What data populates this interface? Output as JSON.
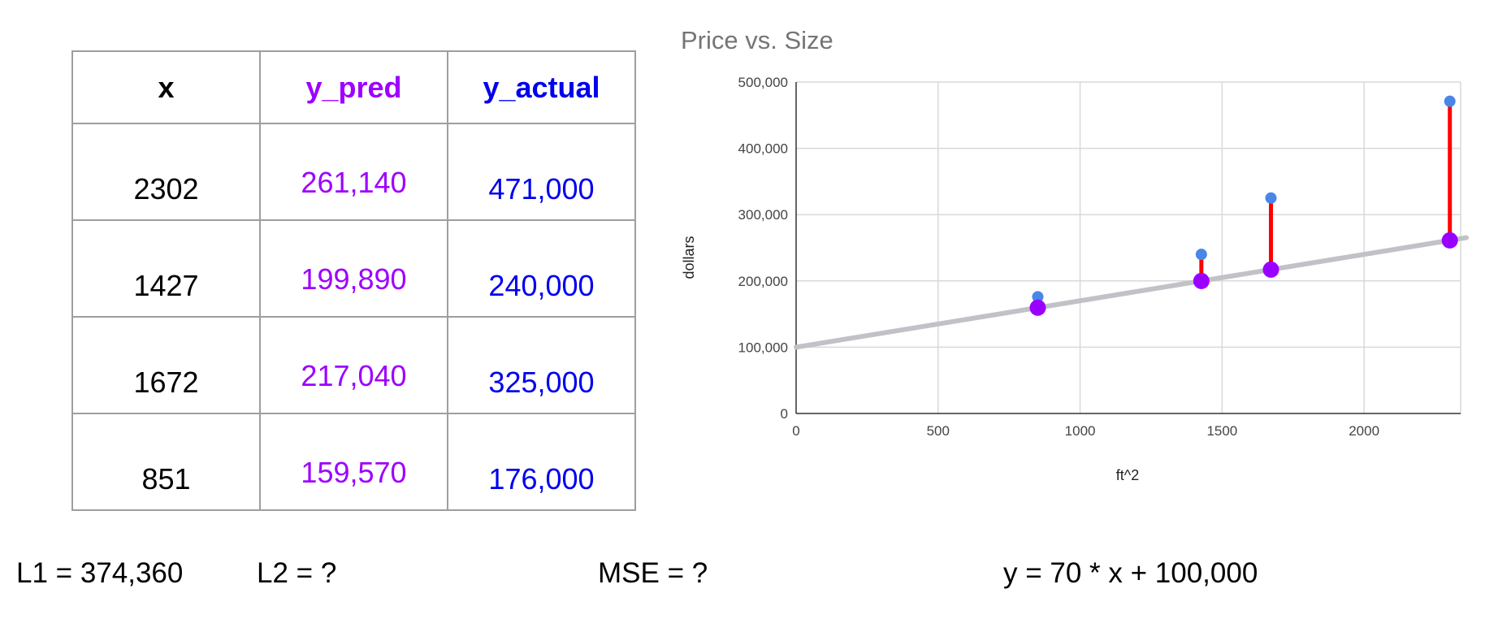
{
  "table": {
    "headers": [
      "x",
      "y_pred",
      "y_actual"
    ],
    "rows": [
      {
        "x": "2302",
        "y_pred": "261,140",
        "y_actual": "471,000"
      },
      {
        "x": "1427",
        "y_pred": "199,890",
        "y_actual": "240,000"
      },
      {
        "x": "1672",
        "y_pred": "217,040",
        "y_actual": "325,000"
      },
      {
        "x": "851",
        "y_pred": "159,570",
        "y_actual": "176,000"
      }
    ]
  },
  "metrics": {
    "l1": "L1 = 374,360",
    "l2": "L2 = ?",
    "mse": "MSE = ?",
    "equation": "y = 70 * x + 100,000"
  },
  "colors": {
    "actual": "#4a86e8",
    "predicted": "#9900ff",
    "residual": "#ff0000",
    "fit_line": "#c0c2c7"
  },
  "chart_data": {
    "type": "scatter",
    "title": "Price vs. Size",
    "xlabel": "ft^2",
    "ylabel": "dollars",
    "xlim": [
      0,
      2340
    ],
    "ylim": [
      0,
      500000
    ],
    "x_ticks": [
      0,
      500,
      1000,
      1500,
      2000
    ],
    "y_ticks": [
      0,
      100000,
      200000,
      300000,
      400000,
      500000
    ],
    "x_tick_labels": [
      "0",
      "500",
      "1000",
      "1500",
      "2000"
    ],
    "y_tick_labels": [
      "0",
      "100,000",
      "200,000",
      "300,000",
      "400,000",
      "500,000"
    ],
    "grid": true,
    "legend": "none",
    "series": [
      {
        "x": [
          2302,
          1427,
          1672,
          851
        ],
        "y": [
          471000,
          240000,
          325000,
          176000
        ]
      },
      {
        "x": [
          2302,
          1427,
          1672,
          851
        ],
        "y": [
          261140,
          199890,
          217040,
          159570
        ]
      }
    ],
    "fit_line": {
      "slope": 70,
      "intercept": 100000
    }
  }
}
